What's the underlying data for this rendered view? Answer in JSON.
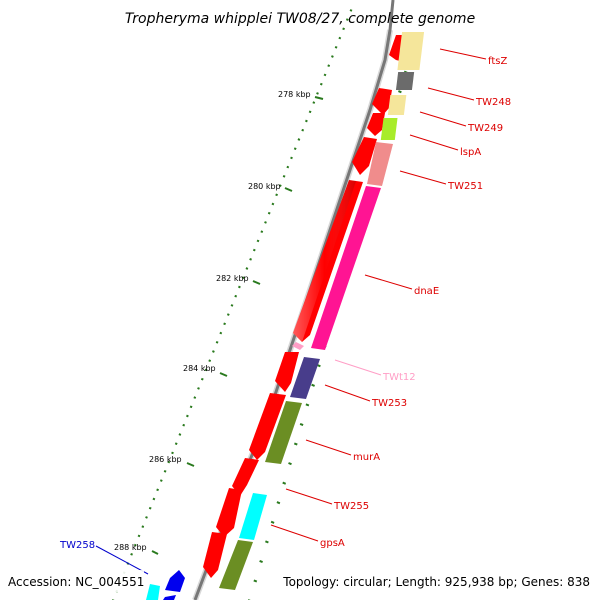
{
  "title": "Tropheryma whipplei TW08/27, complete genome",
  "footer": {
    "accession": "Accession: NC_004551",
    "summary": "Topology: circular; Length: 925,938 bp; Genes: 838"
  },
  "kbp_ticks": [
    "278 kbp",
    "280 kbp",
    "282 kbp",
    "284 kbp",
    "286 kbp",
    "288 kbp"
  ],
  "colors": {
    "backbone": "#777777",
    "tick": "#2a7a1e",
    "forward_strand": "#ff0000",
    "label_red": "#dd0000",
    "label_pink": "#ff9ec6",
    "label_blue": "#0000cc"
  },
  "genes": [
    {
      "name": "ftsZ",
      "color": "#f5e69b"
    },
    {
      "name": "TW248",
      "color": "#6b6b6b"
    },
    {
      "name": "TW249",
      "color": "#f5e69b"
    },
    {
      "name": "lspA",
      "color": "#a8ec2a"
    },
    {
      "name": "TW251",
      "color": "#f08c8c"
    },
    {
      "name": "dnaE",
      "color": "#ff1493"
    },
    {
      "name": "TWt12",
      "color": "#ff9ec6"
    },
    {
      "name": "TW253",
      "color": "#483d8b"
    },
    {
      "name": "murA",
      "color": "#6b8e23"
    },
    {
      "name": "TW255",
      "color": "#00ffff"
    },
    {
      "name": "gpsA",
      "color": "#6b8e23"
    },
    {
      "name": "TW258",
      "color": "#00ffff"
    }
  ]
}
